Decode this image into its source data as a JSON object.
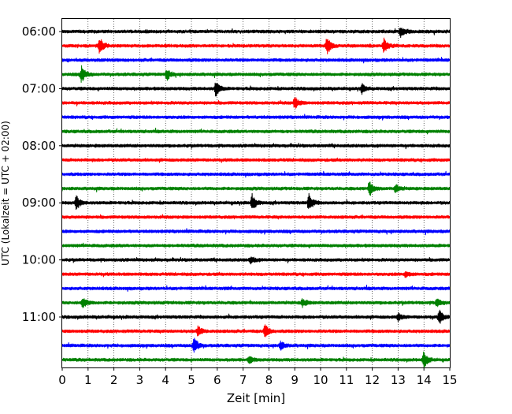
{
  "chart_data": {
    "type": "line",
    "title": "",
    "xlabel": "Zeit  [min]",
    "ylabel": "UTC (Lokalzeit = UTC + 02:00)",
    "xlim": [
      0,
      15
    ],
    "x_ticks": [
      "0",
      "1",
      "2",
      "3",
      "4",
      "5",
      "6",
      "7",
      "8",
      "9",
      "10",
      "11",
      "12",
      "13",
      "14",
      "15"
    ],
    "time_labels": [
      {
        "label": "06:00",
        "trace": 0
      },
      {
        "label": "07:00",
        "trace": 4
      },
      {
        "label": "08:00",
        "trace": 8
      },
      {
        "label": "09:00",
        "trace": 12
      },
      {
        "label": "10:00",
        "trace": 16
      },
      {
        "label": "11:00",
        "trace": 20
      }
    ],
    "grid": "vertical dotted at each minute",
    "legend": "none",
    "colors": [
      "#000000",
      "#ff0000",
      "#0000ff",
      "#008000"
    ],
    "series": [
      {
        "start": "06:00",
        "color": "#000000",
        "events": [
          {
            "x": 13.1,
            "amp": 0.55
          }
        ]
      },
      {
        "start": "06:15",
        "color": "#ff0000",
        "events": [
          {
            "x": 1.45,
            "amp": 1.0
          },
          {
            "x": 10.25,
            "amp": 1.0
          },
          {
            "x": 12.45,
            "amp": 0.9
          }
        ]
      },
      {
        "start": "06:30",
        "color": "#0000ff",
        "events": []
      },
      {
        "start": "06:45",
        "color": "#008000",
        "events": [
          {
            "x": 0.75,
            "amp": 1.0
          },
          {
            "x": 4.05,
            "amp": 0.6
          }
        ]
      },
      {
        "start": "07:00",
        "color": "#000000",
        "events": [
          {
            "x": 5.95,
            "amp": 0.9
          },
          {
            "x": 11.6,
            "amp": 0.5
          }
        ]
      },
      {
        "start": "07:15",
        "color": "#ff0000",
        "events": [
          {
            "x": 9.0,
            "amp": 0.7
          }
        ]
      },
      {
        "start": "07:30",
        "color": "#0000ff",
        "events": []
      },
      {
        "start": "07:45",
        "color": "#008000",
        "events": []
      },
      {
        "start": "08:00",
        "color": "#000000",
        "events": []
      },
      {
        "start": "08:15",
        "color": "#ff0000",
        "events": []
      },
      {
        "start": "08:30",
        "color": "#0000ff",
        "events": []
      },
      {
        "start": "08:45",
        "color": "#008000",
        "events": [
          {
            "x": 11.9,
            "amp": 0.9
          },
          {
            "x": 12.9,
            "amp": 0.5
          }
        ]
      },
      {
        "start": "09:00",
        "color": "#000000",
        "events": [
          {
            "x": 0.55,
            "amp": 0.8
          },
          {
            "x": 7.35,
            "amp": 0.95
          },
          {
            "x": 9.55,
            "amp": 1.0
          }
        ]
      },
      {
        "start": "09:15",
        "color": "#ff0000",
        "events": []
      },
      {
        "start": "09:30",
        "color": "#0000ff",
        "events": []
      },
      {
        "start": "09:45",
        "color": "#008000",
        "events": []
      },
      {
        "start": "10:00",
        "color": "#000000",
        "events": [
          {
            "x": 7.3,
            "amp": 0.4
          }
        ]
      },
      {
        "start": "10:15",
        "color": "#ff0000",
        "events": [
          {
            "x": 13.3,
            "amp": 0.35
          }
        ]
      },
      {
        "start": "10:30",
        "color": "#0000ff",
        "events": []
      },
      {
        "start": "10:45",
        "color": "#008000",
        "events": [
          {
            "x": 0.8,
            "amp": 0.7
          },
          {
            "x": 9.3,
            "amp": 0.5
          },
          {
            "x": 14.5,
            "amp": 0.5
          }
        ]
      },
      {
        "start": "11:00",
        "color": "#000000",
        "events": [
          {
            "x": 14.6,
            "amp": 0.8
          },
          {
            "x": 13.0,
            "amp": 0.4
          }
        ]
      },
      {
        "start": "11:15",
        "color": "#ff0000",
        "events": [
          {
            "x": 5.25,
            "amp": 0.6
          },
          {
            "x": 7.85,
            "amp": 0.8
          }
        ]
      },
      {
        "start": "11:30",
        "color": "#0000ff",
        "events": [
          {
            "x": 5.1,
            "amp": 1.0
          },
          {
            "x": 8.45,
            "amp": 0.5
          }
        ]
      },
      {
        "start": "11:45",
        "color": "#008000",
        "events": [
          {
            "x": 14.0,
            "amp": 1.0
          },
          {
            "x": 7.25,
            "amp": 0.4
          }
        ]
      }
    ]
  }
}
